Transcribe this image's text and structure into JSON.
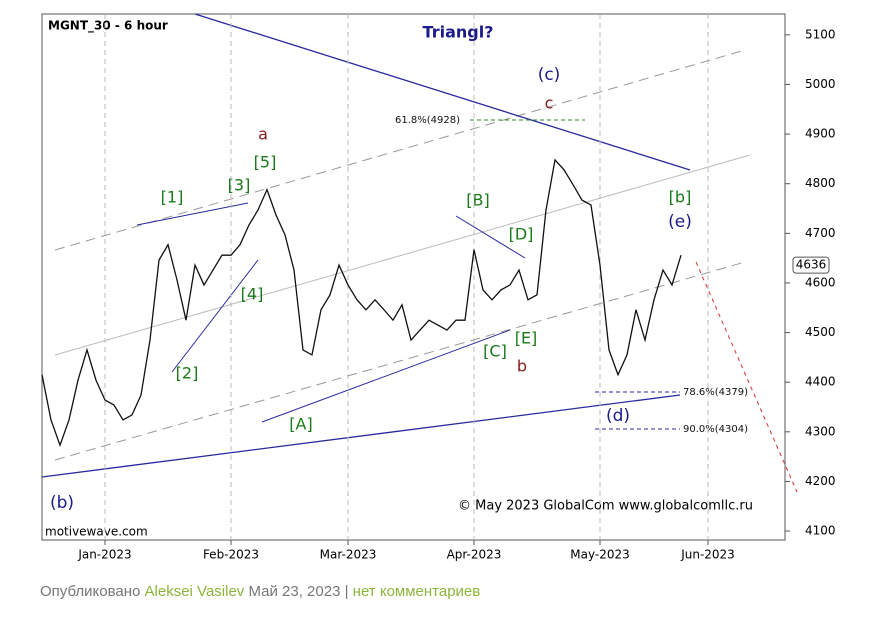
{
  "chart_data": {
    "type": "line",
    "title": "MGNT_30 - 6 hour",
    "subtitle": "Triangl?",
    "categories": [
      null,
      null,
      null,
      null,
      null,
      null,
      null,
      "Jan-2023",
      null,
      null,
      null,
      null,
      null,
      null,
      null,
      null,
      null,
      null,
      null,
      null,
      null,
      "Feb-2023",
      null,
      null,
      null,
      null,
      null,
      null,
      null,
      null,
      null,
      null,
      null,
      null,
      "Mar-2023",
      null,
      null,
      null,
      null,
      null,
      null,
      null,
      null,
      null,
      null,
      null,
      null,
      null,
      "Apr-2023",
      null,
      null,
      null,
      null,
      null,
      null,
      null,
      null,
      null,
      null,
      null,
      null,
      null,
      "May-2023",
      null,
      null,
      null,
      null,
      null,
      null,
      null,
      null,
      null,
      null,
      null,
      "Jun-2023",
      null,
      null,
      null,
      null,
      null,
      null,
      null,
      null
    ],
    "values": [
      4415,
      4324,
      4273,
      4324,
      4404,
      4465,
      4404,
      4364,
      4354,
      4324,
      4334,
      4374,
      4485,
      4646,
      4677,
      4606,
      4525,
      4636,
      4596,
      4626,
      4656,
      4656,
      4677,
      4717,
      4747,
      4788,
      4737,
      4697,
      4626,
      4465,
      4455,
      4546,
      4576,
      4636,
      4596,
      4566,
      4546,
      4566,
      4546,
      4525,
      4556,
      4485,
      4505,
      4525,
      4515,
      4505,
      4525,
      4525,
      4667,
      4586,
      4566,
      4586,
      4596,
      4626,
      4566,
      4576,
      4747,
      4848,
      4828,
      4798,
      4767,
      4757,
      4636,
      4465,
      4415,
      4455,
      4546,
      4485,
      4566,
      4626,
      4596,
      4656,
      null,
      null,
      null,
      null,
      null,
      null,
      null,
      null,
      null,
      null,
      null
    ],
    "color": "#111111",
    "ylim": [
      4082,
      5142
    ],
    "yticks": [
      4100,
      4200,
      4300,
      4400,
      4500,
      4600,
      4700,
      4800,
      4900,
      5000,
      5100
    ],
    "last_price": 4636,
    "xgrid": true,
    "annotations": [
      "(c)",
      "c",
      "a",
      "[5]",
      "[3]",
      "[1]",
      "[B]",
      "[D]",
      "[b]",
      "(e)",
      "[4]",
      "[2]",
      "[C]",
      "[E]",
      "b",
      "[A]",
      "(d)",
      "(b)"
    ],
    "fib_labels": [
      "61.8%(4928)",
      "78.6%(4379)",
      "90.0%(4304)"
    ],
    "watermark": "motivewave.com",
    "copyright": "© May 2023 GlobalCom www.globalcomllc.ru"
  },
  "footer": {
    "prefix": "Опубликовано",
    "author": "Aleksei Vasilev",
    "date": "Май 23, 2023",
    "separator": "|",
    "comments": "нет комментариев"
  }
}
